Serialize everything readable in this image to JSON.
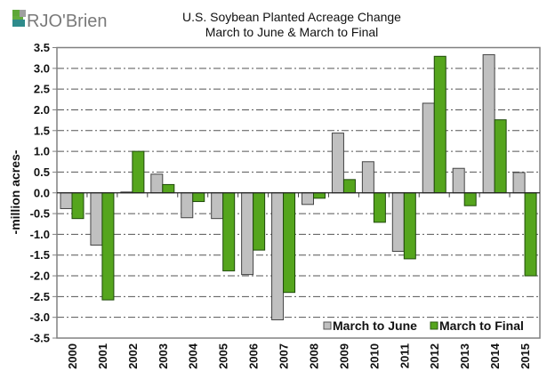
{
  "logo": {
    "text": "RJO'Brien"
  },
  "chart_data": {
    "type": "bar",
    "title": "U.S. Soybean Planted Acreage Change",
    "subtitle": "March to June & March to Final",
    "xlabel": "",
    "ylabel": "-million acres-",
    "ylim": [
      -3.5,
      3.5
    ],
    "yticks": [
      "3.5",
      "3.0",
      "2.5",
      "2.0",
      "1.5",
      "1.0",
      "0.5",
      "0.0",
      "-0.5",
      "-1.0",
      "-1.5",
      "-2.0",
      "-2.5",
      "-3.0",
      "-3.5"
    ],
    "grid": true,
    "legend_position": "bottom-right",
    "categories": [
      "2000",
      "2001",
      "2002",
      "2003",
      "2004",
      "2005",
      "2006",
      "2007",
      "2008",
      "2009",
      "2010",
      "2011",
      "2012",
      "2013",
      "2014",
      "2015"
    ],
    "series": [
      {
        "name": "March to June",
        "color": "#C0C0C0",
        "values": [
          -0.38,
          -1.26,
          0.02,
          0.45,
          -0.6,
          -0.62,
          -1.97,
          -3.06,
          -0.28,
          1.44,
          0.75,
          -1.41,
          2.16,
          0.59,
          3.33,
          0.49
        ]
      },
      {
        "name": "March to Final",
        "color": "#55A51D",
        "values": [
          -0.62,
          -2.58,
          1.0,
          0.2,
          -0.21,
          -1.88,
          -1.38,
          -2.4,
          -0.13,
          0.32,
          -0.71,
          -1.59,
          3.29,
          -0.31,
          1.76,
          -2.0
        ]
      }
    ]
  }
}
